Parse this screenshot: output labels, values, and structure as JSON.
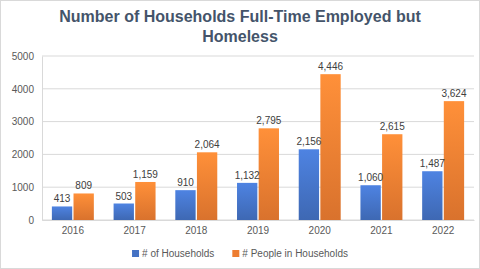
{
  "chart_data": {
    "type": "bar",
    "title": "Number of Households  Full-Time Employed but Homeless",
    "categories": [
      "2016",
      "2017",
      "2018",
      "2019",
      "2020",
      "2021",
      "2022"
    ],
    "series": [
      {
        "name": "# of Households",
        "color": "#4472c4",
        "values": [
          413,
          503,
          910,
          1132,
          2156,
          1060,
          1487
        ],
        "value_labels": [
          "413",
          "503",
          "910",
          "1,132",
          "2,156",
          "1,060",
          "1,487"
        ]
      },
      {
        "name": "# People in Households",
        "color": "#ed7d31",
        "values": [
          809,
          1159,
          2064,
          2795,
          4446,
          2615,
          3624
        ],
        "value_labels": [
          "809",
          "1,159",
          "2,064",
          "2,795",
          "4,446",
          "2,615",
          "3,624"
        ]
      }
    ],
    "ylim": [
      0,
      5000
    ],
    "yticks": [
      0,
      1000,
      2000,
      3000,
      4000,
      5000
    ],
    "grid": true,
    "legend": "bottom",
    "data_labels": true
  }
}
